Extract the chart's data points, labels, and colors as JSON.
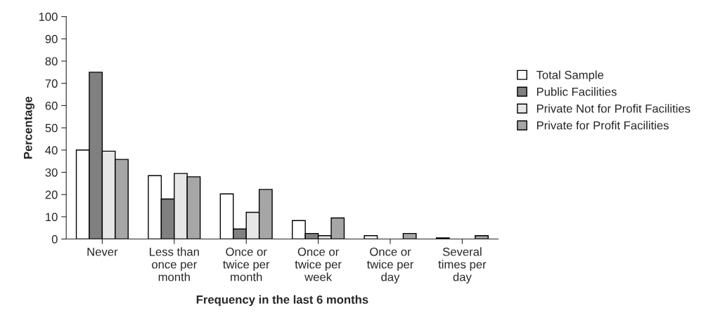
{
  "chart_data": {
    "type": "bar",
    "xlabel": "Frequency in the last 6 months",
    "ylabel": "Percentage",
    "categories": [
      "Never",
      "Less than\nonce per\nmonth",
      "Once or\ntwice per\nmonth",
      "Once or\ntwice per\nweek",
      "Once or\ntwice per\nday",
      "Several\ntimes per\nday"
    ],
    "series": [
      {
        "name": "Total Sample",
        "color": "#ffffff",
        "values": [
          40,
          28.5,
          20.3,
          8.3,
          1.5,
          0.5
        ]
      },
      {
        "name": "Public Facilities",
        "color": "#808080",
        "values": [
          75,
          18,
          4.5,
          2.5,
          0,
          0
        ]
      },
      {
        "name": "Private Not for Profit Facilities",
        "color": "#e6e6e6",
        "values": [
          39.5,
          29.5,
          12,
          1.5,
          0,
          0
        ]
      },
      {
        "name": "Private for Profit Facilities",
        "color": "#a6a6a6",
        "values": [
          35.8,
          28,
          22.3,
          9.5,
          2.5,
          1.5
        ]
      }
    ],
    "ylim": [
      0,
      100
    ],
    "yticks": [
      0,
      10,
      20,
      30,
      40,
      50,
      60,
      70,
      80,
      90,
      100
    ],
    "grid": false,
    "legend": "right"
  }
}
